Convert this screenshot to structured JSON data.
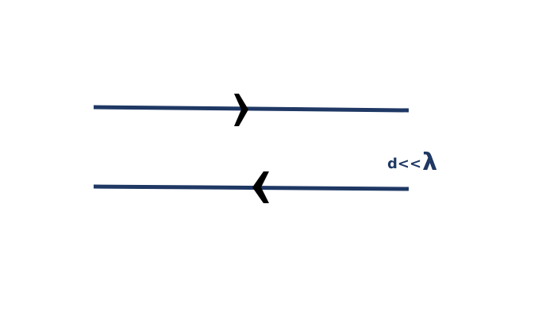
{
  "colors": {
    "line": "#1f3864",
    "arrow": "#000000",
    "label": "#1f3864"
  },
  "lines": [
    {
      "name": "top-conductor",
      "arrow": "right"
    },
    {
      "name": "bottom-conductor",
      "arrow": "left"
    }
  ],
  "label": {
    "prefix": "d<<",
    "symbol": "λ"
  }
}
